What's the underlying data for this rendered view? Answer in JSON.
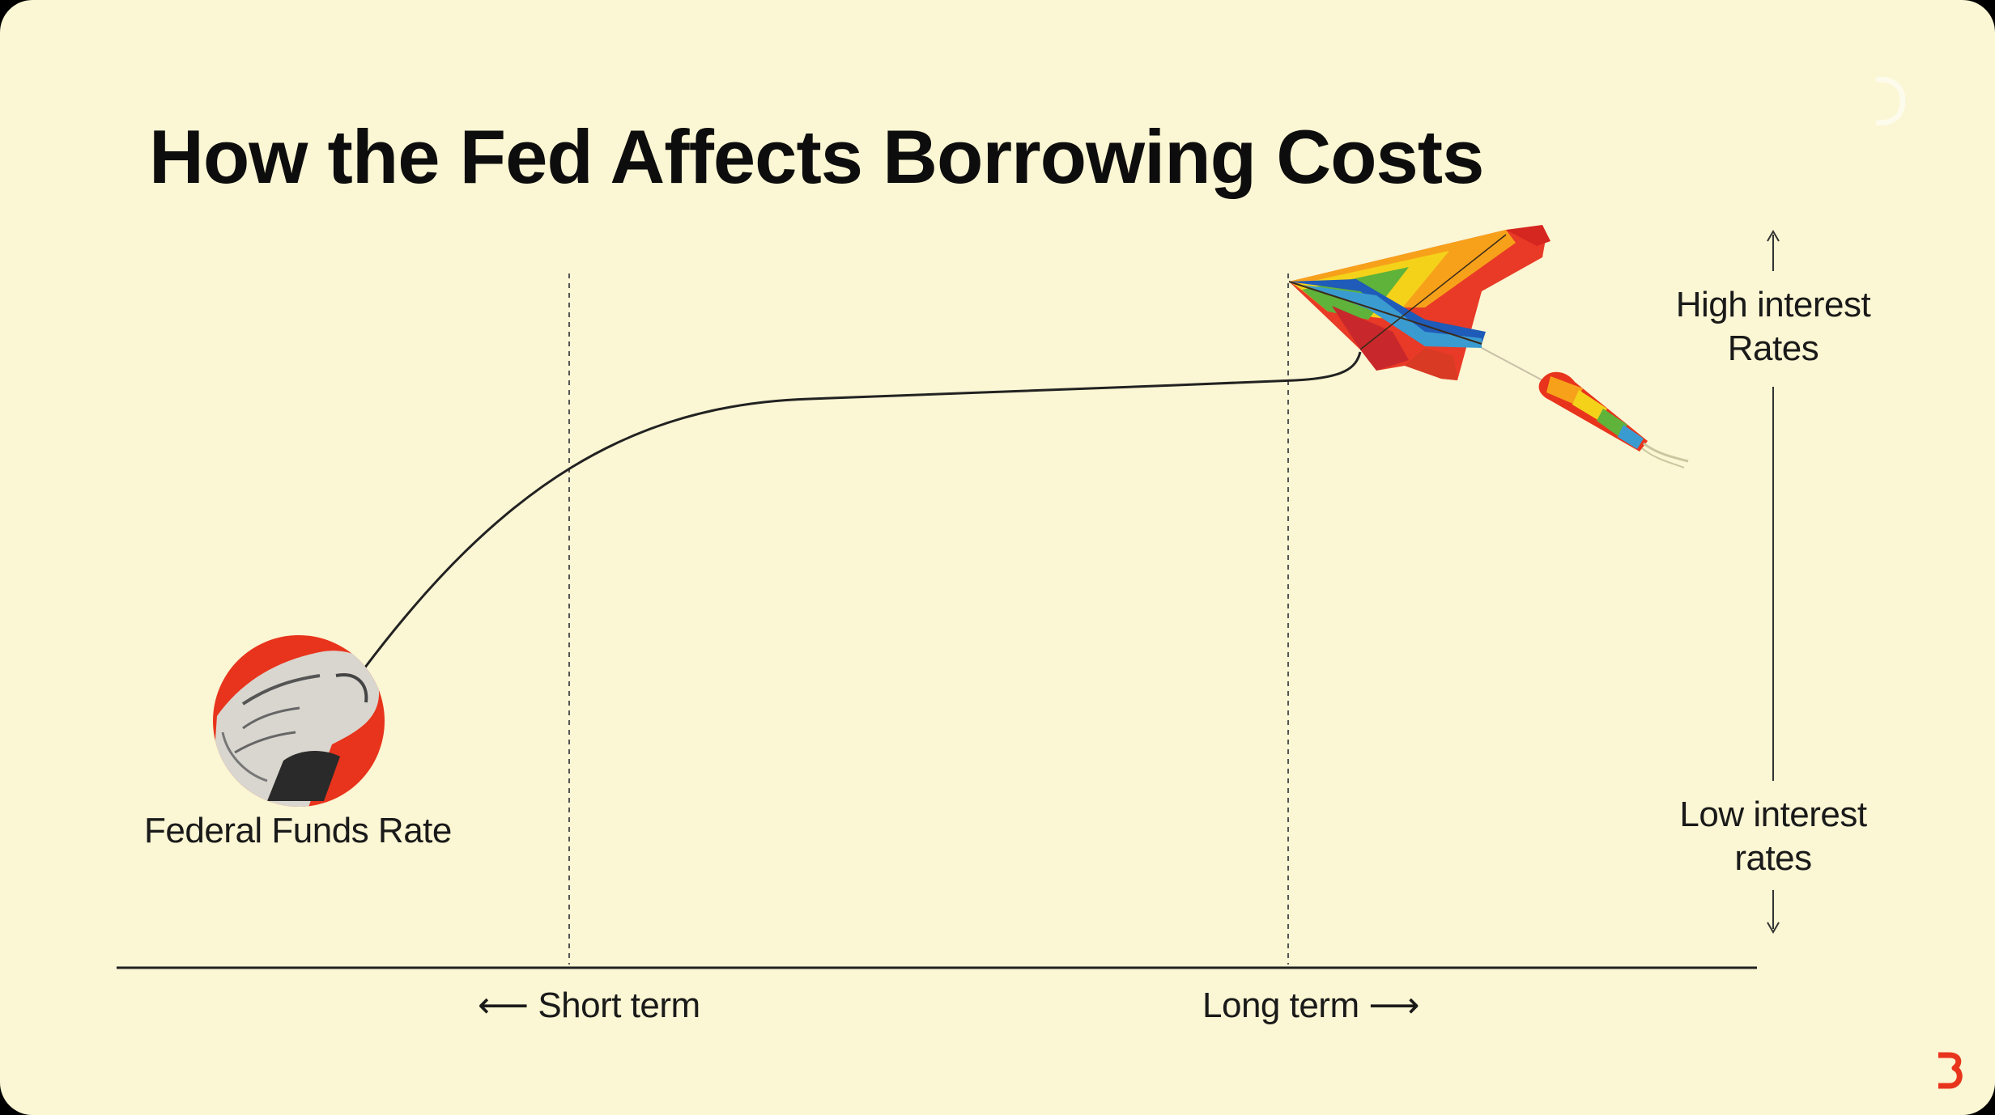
{
  "title": "How the Fed Affects Borrowing Costs",
  "labels": {
    "fed_funds_rate": "Federal Funds Rate",
    "short_term": "Short term",
    "long_term": "Long term",
    "high_rates_line1": "High interest",
    "high_rates_line2": "Rates",
    "low_rates_line1": "Low interest",
    "low_rates_line2": "rates"
  },
  "icons": {
    "fist": "raised-fist-icon",
    "kite": "rainbow-kite-icon",
    "brand": "brand-logo-icon",
    "left_arrow": "left-arrow-icon",
    "right_arrow": "right-arrow-icon",
    "up_arrow": "up-arrow-icon",
    "down_arrow": "down-arrow-icon"
  },
  "colors": {
    "background": "#fbf6d3",
    "fist_circle": "#e8341c",
    "text": "#111111",
    "brand": "#e8341c"
  }
}
